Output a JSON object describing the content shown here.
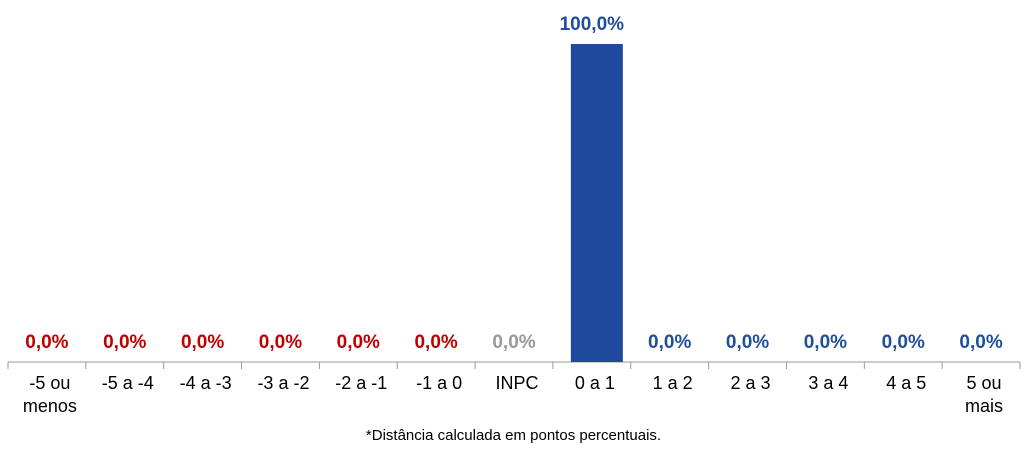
{
  "chart_data": {
    "type": "bar",
    "categories": [
      "-5 ou menos",
      "-5 a -4",
      "-4 a -3",
      "-3 a -2",
      "-2 a -1",
      "-1 a 0",
      "INPC",
      "0 a 1",
      "1 a 2",
      "2 a 3",
      "3 a 4",
      "4 a 5",
      "5 ou mais"
    ],
    "values": [
      0,
      0,
      0,
      0,
      0,
      0,
      0,
      100,
      0,
      0,
      0,
      0,
      0
    ],
    "value_labels": [
      "0,0%",
      "0,0%",
      "0,0%",
      "0,0%",
      "0,0%",
      "0,0%",
      "0,0%",
      "100,0%",
      "0,0%",
      "0,0%",
      "0,0%",
      "0,0%",
      "0,0%"
    ],
    "colors": [
      "#c00000",
      "#c00000",
      "#c00000",
      "#c00000",
      "#c00000",
      "#c00000",
      "#999999",
      "#1f4e9c",
      "#1f4e9c",
      "#1f4e9c",
      "#1f4e9c",
      "#1f4e9c",
      "#1f4e9c"
    ],
    "note": "*Distância calculada em pontos percentuais."
  }
}
